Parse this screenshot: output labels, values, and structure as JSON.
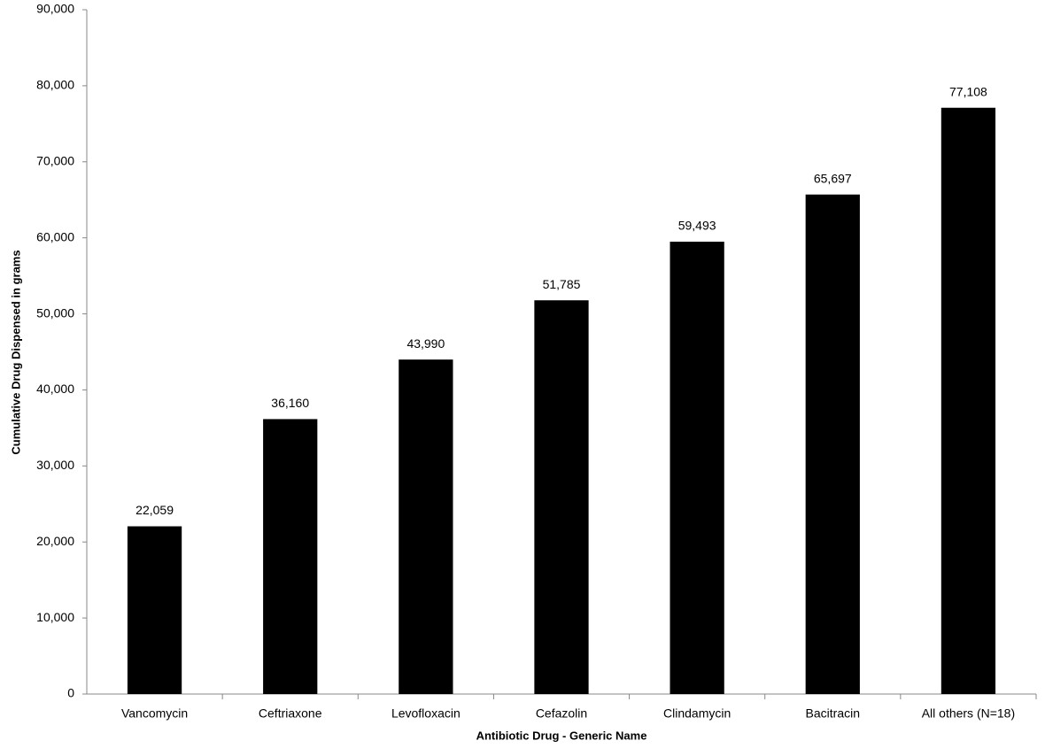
{
  "chart_data": {
    "type": "bar",
    "x_label": "Antibiotic Drug - Generic Name",
    "y_label": "Cumulative Drug Dispensed in grams",
    "categories": [
      "Vancomycin",
      "Ceftriaxone",
      "Levofloxacin",
      "Cefazolin",
      "Clindamycin",
      "Bacitracin",
      "All others (N=18)"
    ],
    "values": [
      22059,
      36160,
      43990,
      51785,
      59493,
      65697,
      77108
    ],
    "value_labels": [
      "22,059",
      "36,160",
      "43,990",
      "51,785",
      "59,493",
      "65,697",
      "77,108"
    ],
    "color": "#000000",
    "ylim": [
      0,
      90000
    ],
    "yticks": [
      0,
      {
        "value": 10000,
        "label": "10,000"
      },
      {
        "value": 20000,
        "label": "20,000"
      },
      {
        "value": 30000,
        "label": "30,000"
      },
      {
        "value": 40000,
        "label": "40,000"
      },
      {
        "value": 50000,
        "label": "50,000"
      },
      {
        "value": 60000,
        "label": "60,000"
      },
      {
        "value": 70000,
        "label": "70,000"
      },
      {
        "value": 80000,
        "label": "80,000"
      },
      {
        "value": 90000,
        "label": "90,000"
      }
    ],
    "grid": false
  }
}
